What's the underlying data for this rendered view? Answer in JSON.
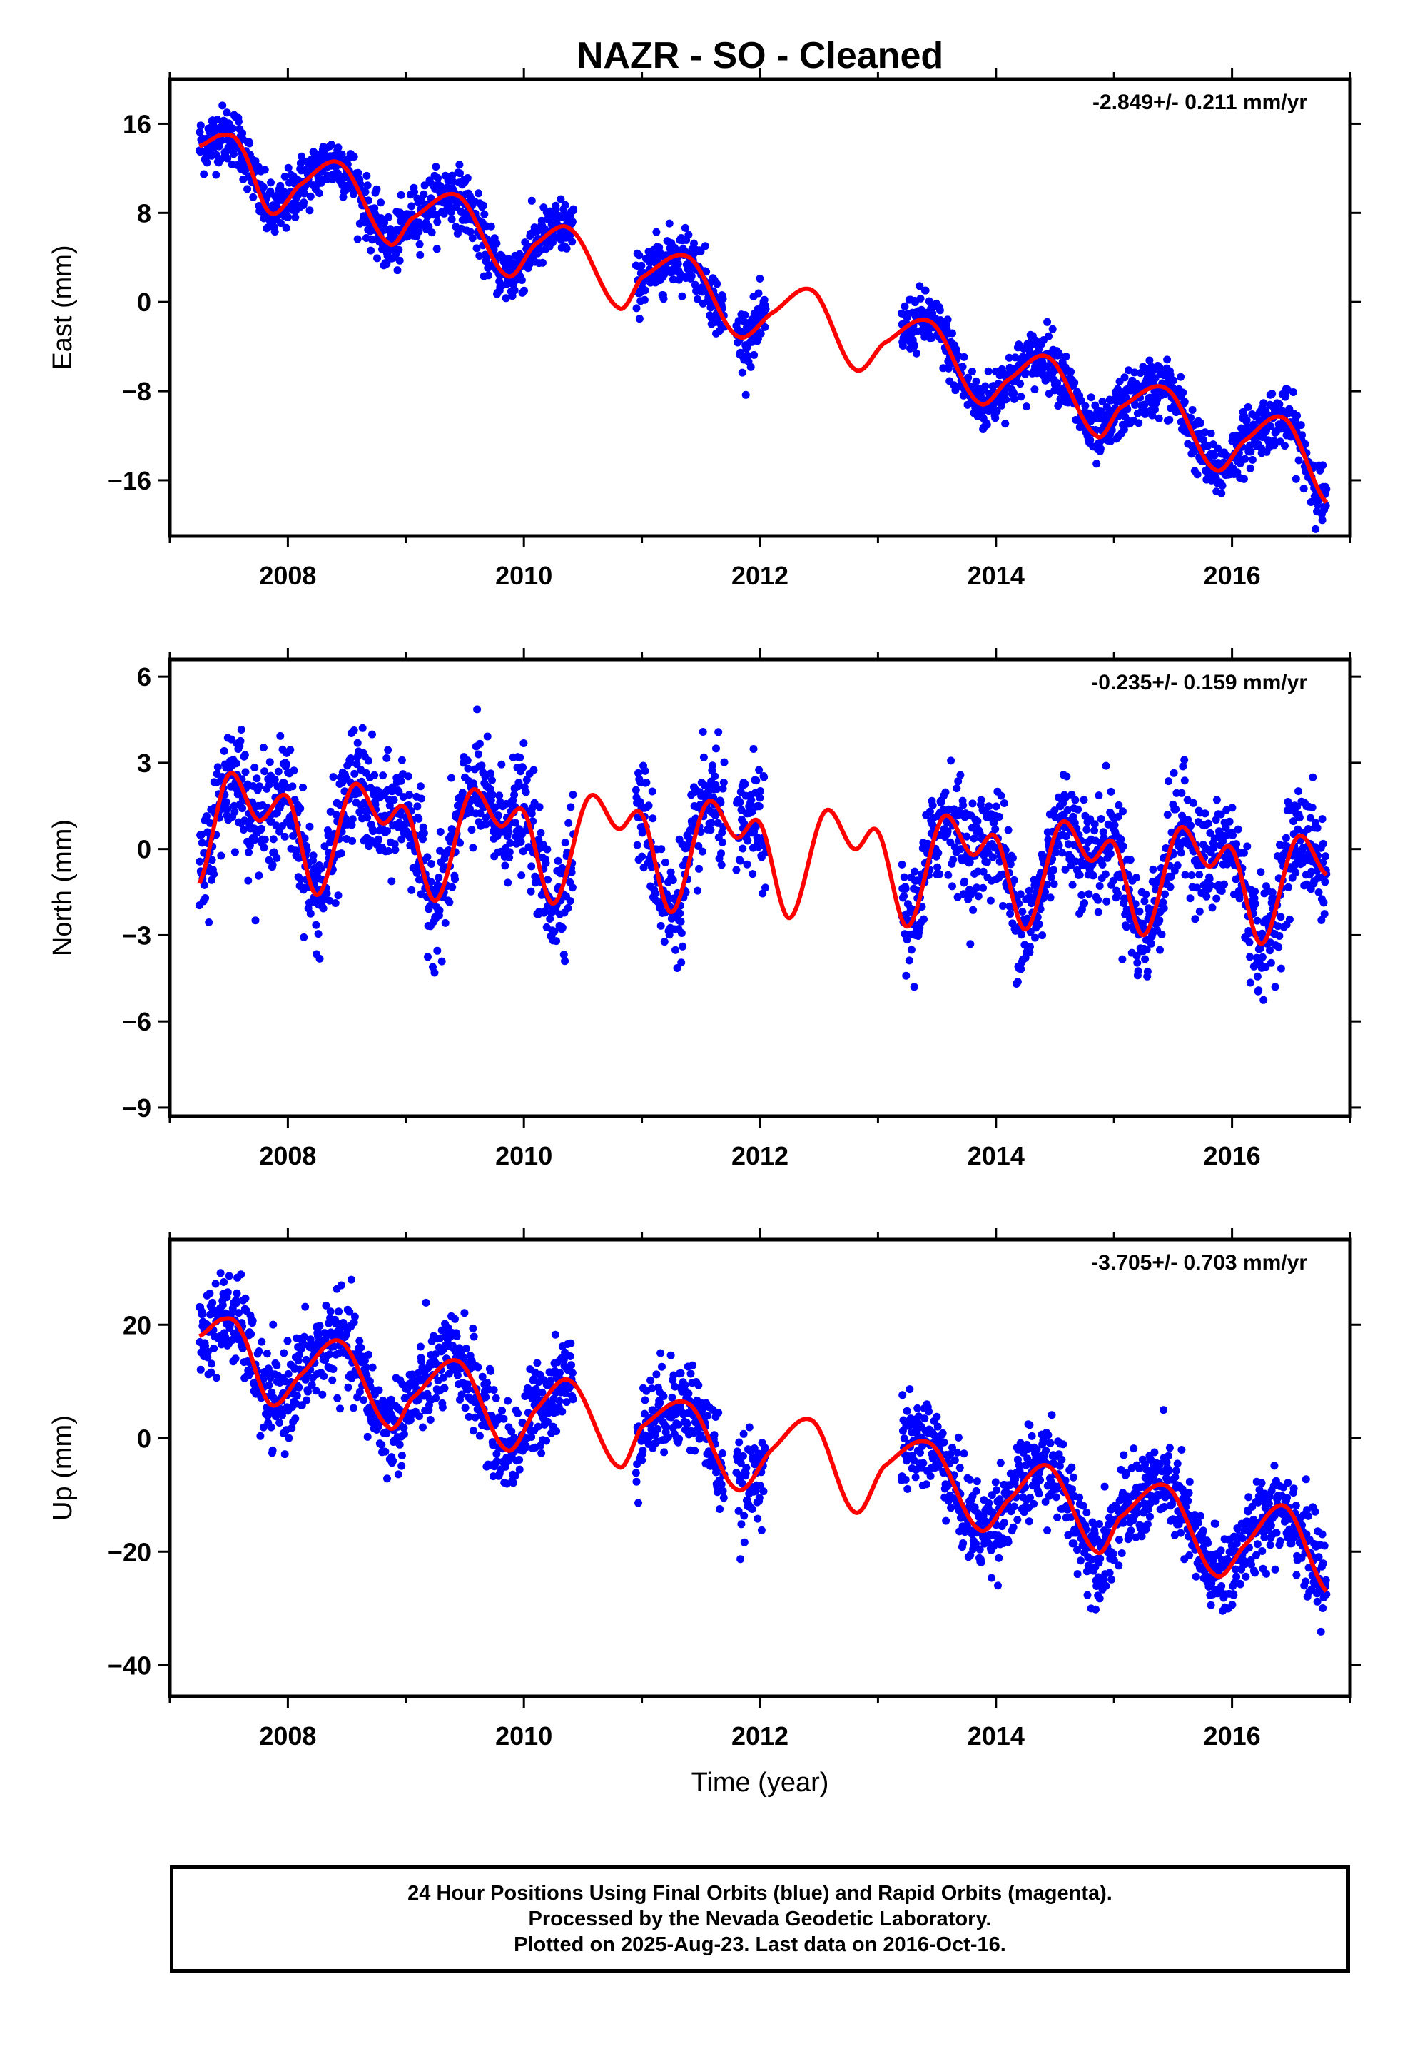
{
  "title": "NAZR  - SO - Cleaned",
  "xlabel": "Time (year)",
  "colors": {
    "points": "#0000ff",
    "model": "#ff0000",
    "axes": "#000000"
  },
  "footer": {
    "line1": "24 Hour Positions Using Final Orbits (blue) and Rapid Orbits (magenta).",
    "line2": "Processed by the Nevada Geodetic Laboratory.",
    "line3": "Plotted on 2025-Aug-23. Last data on 2016-Oct-16."
  },
  "chart_data": [
    {
      "type": "scatter",
      "component": "East",
      "ylabel": "East (mm)",
      "rate_label": "-2.849+/- 0.211 mm/yr",
      "xlim": [
        2007.0,
        2017.0
      ],
      "ylim": [
        -21,
        20
      ],
      "xticks": [
        2008,
        2010,
        2012,
        2014,
        2016
      ],
      "yticks": [
        -16,
        -8,
        0,
        8,
        16
      ],
      "grid": false,
      "data_segments": [
        [
          2007.25,
          2010.42
        ],
        [
          2010.95,
          2011.7
        ],
        [
          2011.8,
          2012.05
        ],
        [
          2013.2,
          2016.8
        ]
      ],
      "model": {
        "x": [
          2007.25,
          2007.45,
          2007.6,
          2007.85,
          2008.1,
          2008.45,
          2008.85,
          2009.05,
          2009.45,
          2009.85,
          2010.1,
          2010.4,
          2010.8,
          2011.0,
          2011.4,
          2011.8,
          2012.1,
          2012.45,
          2012.8,
          2013.05,
          2013.45,
          2013.85,
          2014.1,
          2014.45,
          2014.85,
          2015.05,
          2015.45,
          2015.85,
          2016.1,
          2016.45,
          2016.8
        ],
        "y": [
          14,
          15,
          14,
          8,
          10.5,
          12.4,
          5.3,
          7.5,
          9.5,
          2.4,
          5.2,
          6.5,
          -0.5,
          2.2,
          4.0,
          -3.0,
          -1.0,
          1.0,
          -6.0,
          -3.7,
          -1.8,
          -9.0,
          -7.0,
          -5.0,
          -12.0,
          -9.5,
          -7.8,
          -15.0,
          -12.5,
          -10.5,
          -18.0
        ]
      }
    },
    {
      "type": "scatter",
      "component": "North",
      "ylabel": "North (mm)",
      "rate_label": "-0.235+/- 0.159 mm/yr",
      "xlim": [
        2007.0,
        2017.0
      ],
      "ylim": [
        -9.3,
        6.6
      ],
      "xticks": [
        2008,
        2010,
        2012,
        2014,
        2016
      ],
      "yticks": [
        -9,
        -6,
        -3,
        0,
        3,
        6
      ],
      "grid": false,
      "data_segments": [
        [
          2007.25,
          2010.42
        ],
        [
          2010.95,
          2011.7
        ],
        [
          2011.8,
          2012.05
        ],
        [
          2013.2,
          2016.8
        ]
      ],
      "model": {
        "x": [
          2007.25,
          2007.5,
          2007.75,
          2008.0,
          2008.25,
          2008.55,
          2008.8,
          2009.0,
          2009.25,
          2009.55,
          2009.8,
          2010.0,
          2010.25,
          2010.55,
          2010.8,
          2011.0,
          2011.25,
          2011.55,
          2011.8,
          2012.0,
          2012.25,
          2012.55,
          2012.8,
          2013.0,
          2013.25,
          2013.55,
          2013.8,
          2014.0,
          2014.25,
          2014.55,
          2014.8,
          2015.0,
          2015.25,
          2015.55,
          2015.8,
          2016.0,
          2016.25,
          2016.55,
          2016.8
        ],
        "y": [
          -1.2,
          2.6,
          1.0,
          1.8,
          -1.6,
          2.2,
          0.9,
          1.4,
          -1.8,
          2.0,
          0.8,
          1.3,
          -1.9,
          1.8,
          0.7,
          1.2,
          -2.2,
          1.6,
          0.4,
          0.9,
          -2.4,
          1.3,
          0.0,
          0.6,
          -2.7,
          1.1,
          -0.2,
          0.4,
          -2.8,
          0.9,
          -0.4,
          0.2,
          -3.0,
          0.7,
          -0.6,
          0.0,
          -3.3,
          0.4,
          -0.9
        ]
      }
    },
    {
      "type": "scatter",
      "component": "Up",
      "ylabel": "Up (mm)",
      "rate_label": "-3.705+/- 0.703 mm/yr",
      "xlim": [
        2007.0,
        2017.0
      ],
      "ylim": [
        -45.5,
        35
      ],
      "xticks": [
        2008,
        2010,
        2012,
        2014,
        2016
      ],
      "yticks": [
        -40,
        -20,
        0,
        20
      ],
      "grid": false,
      "data_segments": [
        [
          2007.25,
          2010.42
        ],
        [
          2010.95,
          2011.7
        ],
        [
          2011.8,
          2012.05
        ],
        [
          2013.2,
          2016.8
        ]
      ],
      "model": {
        "x": [
          2007.25,
          2007.45,
          2007.6,
          2007.85,
          2008.1,
          2008.45,
          2008.85,
          2009.05,
          2009.45,
          2009.85,
          2010.1,
          2010.4,
          2010.8,
          2011.0,
          2011.4,
          2011.8,
          2012.1,
          2012.45,
          2012.8,
          2013.05,
          2013.45,
          2013.85,
          2014.1,
          2014.45,
          2014.85,
          2015.05,
          2015.45,
          2015.85,
          2016.1,
          2016.45,
          2016.8
        ],
        "y": [
          18,
          21,
          19,
          6,
          11,
          17,
          2,
          7,
          13.5,
          -2,
          5,
          10,
          -5,
          2,
          6,
          -9,
          -2,
          3,
          -13,
          -5,
          -1,
          -16,
          -11,
          -5,
          -20,
          -14,
          -8.5,
          -24,
          -19,
          -12,
          -27
        ]
      }
    }
  ]
}
